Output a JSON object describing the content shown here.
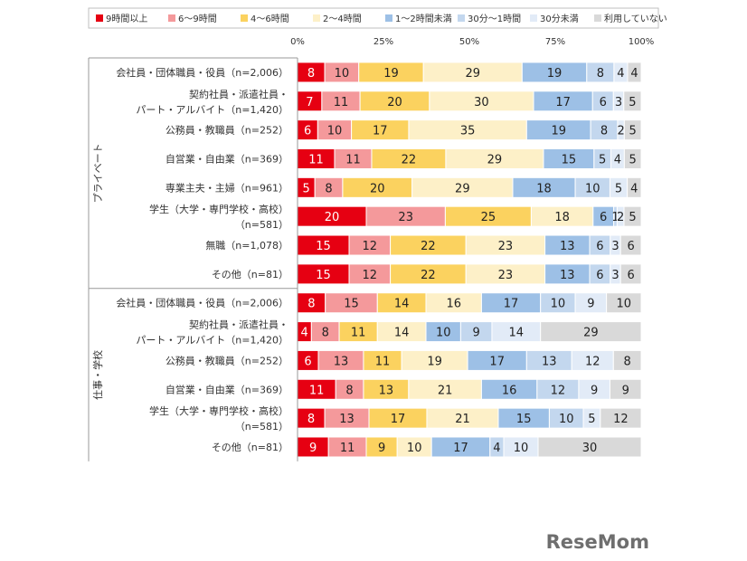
{
  "chart_data": {
    "type": "bar",
    "orientation": "horizontal-stacked-100",
    "x_ticks": [
      "0%",
      "25%",
      "50%",
      "75%",
      "100%"
    ],
    "xlim": [
      0,
      100
    ],
    "legend_position": "top",
    "series": [
      {
        "name": "9時間以上",
        "color": "#e60012"
      },
      {
        "name": "6～9時間",
        "color": "#f4999b"
      },
      {
        "name": "4～6時間",
        "color": "#fbd25f"
      },
      {
        "name": "2～4時間",
        "color": "#fdf0c8"
      },
      {
        "name": "1～2時間未満",
        "color": "#9dc0e6"
      },
      {
        "name": "30分～1時間",
        "color": "#c3d7ee"
      },
      {
        "name": "30分未満",
        "color": "#e2ebf7"
      },
      {
        "name": "利用していない",
        "color": "#d9d9d9"
      }
    ],
    "groups": [
      {
        "label": "プライベート",
        "rows": [
          {
            "label": [
              "会社員・団体職員・役員（n=2,006）"
            ],
            "values": [
              8,
              10,
              19,
              29,
              19,
              8,
              4,
              4
            ]
          },
          {
            "label": [
              "契約社員・派遣社員・",
              "パート・アルバイト（n=1,420）"
            ],
            "values": [
              7,
              11,
              20,
              30,
              17,
              6,
              3,
              5
            ]
          },
          {
            "label": [
              "公務員・教職員（n=252）"
            ],
            "values": [
              6,
              10,
              17,
              35,
              19,
              8,
              2,
              5
            ]
          },
          {
            "label": [
              "自営業・自由業（n=369）"
            ],
            "values": [
              11,
              11,
              22,
              29,
              15,
              5,
              4,
              5
            ]
          },
          {
            "label": [
              "専業主夫・主婦（n=961）"
            ],
            "values": [
              5,
              8,
              20,
              29,
              18,
              10,
              5,
              4
            ]
          },
          {
            "label": [
              "学生（大学・専門学校・高校）",
              "（n=581）"
            ],
            "values": [
              20,
              23,
              25,
              18,
              6,
              1,
              2,
              5
            ]
          },
          {
            "label": [
              "無職（n=1,078）"
            ],
            "values": [
              15,
              12,
              22,
              23,
              13,
              6,
              3,
              6
            ]
          },
          {
            "label": [
              "その他（n=81）"
            ],
            "values": [
              15,
              12,
              22,
              23,
              13,
              6,
              3,
              6
            ]
          }
        ]
      },
      {
        "label": "仕事・学校",
        "rows": [
          {
            "label": [
              "会社員・団体職員・役員（n=2,006）"
            ],
            "values": [
              8,
              15,
              14,
              16,
              17,
              10,
              9,
              10
            ]
          },
          {
            "label": [
              "契約社員・派遣社員・",
              "パート・アルバイト（n=1,420）"
            ],
            "values": [
              4,
              8,
              11,
              14,
              10,
              9,
              14,
              29
            ]
          },
          {
            "label": [
              "公務員・教職員（n=252）"
            ],
            "values": [
              6,
              13,
              11,
              19,
              17,
              13,
              12,
              8
            ]
          },
          {
            "label": [
              "自営業・自由業（n=369）"
            ],
            "values": [
              11,
              8,
              13,
              21,
              16,
              12,
              9,
              9
            ]
          },
          {
            "label": [
              "学生（大学・専門学校・高校）",
              "（n=581）"
            ],
            "values": [
              8,
              13,
              17,
              21,
              15,
              10,
              5,
              12
            ]
          },
          {
            "label": [
              "その他（n=81）"
            ],
            "values": [
              9,
              11,
              9,
              10,
              17,
              4,
              10,
              30
            ]
          }
        ]
      }
    ],
    "watermark": "ReseMom"
  }
}
